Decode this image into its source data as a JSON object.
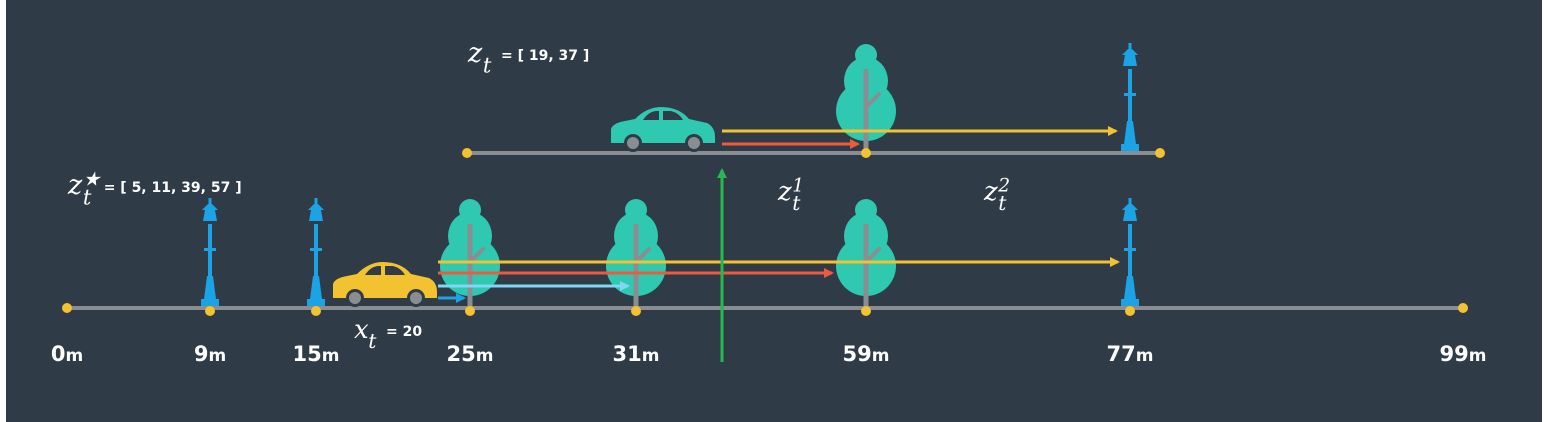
{
  "colors": {
    "background": "#2f3b46",
    "road": "#8a8e92",
    "dot": "#f2c230",
    "lamp": "#1ba3e6",
    "tree": "#2ec9b0",
    "trunk": "#8a8e92",
    "car_main": "#f2c230",
    "car_obs": "#2ec9b0",
    "arrow_yellow": "#f2c230",
    "arrow_red": "#ee5a3b",
    "arrow_cyan": "#7fd7f2",
    "arrow_blue": "#1ba3e6",
    "arrow_green": "#27b84f"
  },
  "labels": {
    "obs": {
      "sym": "z",
      "sub": "t",
      "text": "= [ 19, 37 ]"
    },
    "map": {
      "sym": "z",
      "sub": "t",
      "sup": "★",
      "text": "= [ 5, 11, 39, 57 ]"
    },
    "pos": {
      "sym": "x",
      "sub": "t",
      "text": "= 20"
    },
    "z1": {
      "sym": "z",
      "sub": "t",
      "sup": "1"
    },
    "z2": {
      "sym": "z",
      "sub": "t",
      "sup": "2"
    }
  },
  "unit": "m",
  "road_ticks": [
    0,
    9,
    15,
    25,
    31,
    59,
    77,
    99
  ],
  "lamp_positions": [
    9,
    15,
    77
  ],
  "tree_positions": [
    25,
    31,
    59
  ],
  "car_position": 20,
  "map_distances": [
    5,
    11,
    39,
    57
  ],
  "observation_distances": [
    19,
    37
  ]
}
